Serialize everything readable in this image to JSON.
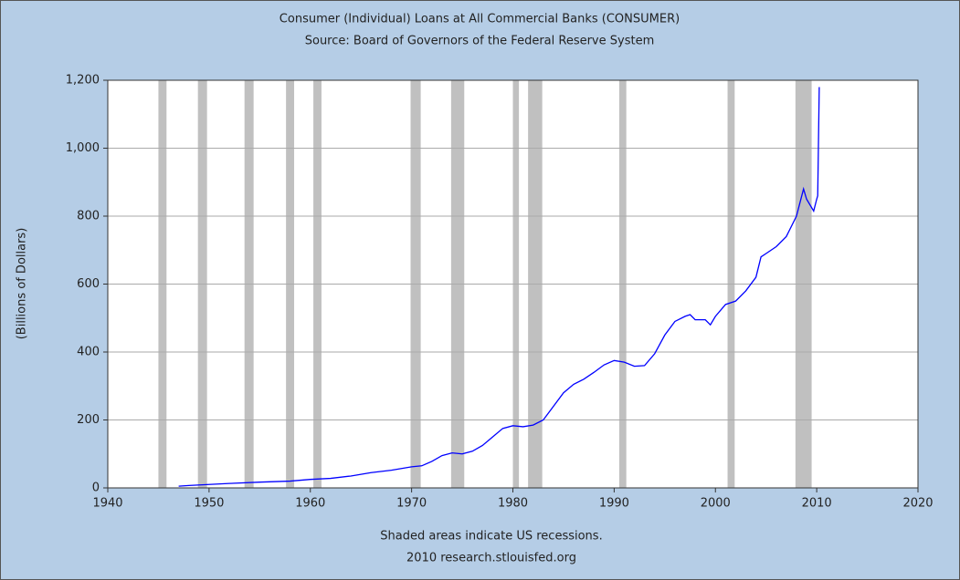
{
  "chart_data": {
    "type": "line",
    "title": "Consumer (Individual) Loans at All Commercial Banks (CONSUMER)",
    "subtitle": "Source: Board of Governors of the Federal Reserve System",
    "y_label": "(Billions of Dollars)",
    "footnote": "Shaded areas indicate US recessions.",
    "credit": "2010 research.stlouisfed.org",
    "color": "#0000ff",
    "recession_color": "#c0c0c0",
    "grid": true,
    "xlim": [
      1940,
      2020
    ],
    "xticks": [
      1940,
      1950,
      1960,
      1970,
      1980,
      1990,
      2000,
      2010,
      2020
    ],
    "ylim": [
      0,
      1200
    ],
    "yticks": [
      0,
      200,
      400,
      600,
      800,
      {
        "value": 1000,
        "label": "1,000"
      },
      {
        "value": 1200,
        "label": "1,200"
      }
    ],
    "recessions": [
      [
        1945.0,
        1945.8
      ],
      [
        1948.9,
        1949.8
      ],
      [
        1953.5,
        1954.4
      ],
      [
        1957.6,
        1958.4
      ],
      [
        1960.3,
        1961.1
      ],
      [
        1969.9,
        1970.9
      ],
      [
        1973.9,
        1975.2
      ],
      [
        1980.0,
        1980.6
      ],
      [
        1981.5,
        1982.9
      ],
      [
        1990.5,
        1991.2
      ],
      [
        2001.2,
        2001.9
      ],
      [
        2007.9,
        2009.5
      ]
    ],
    "x": [
      1947,
      1948,
      1950,
      1952,
      1955,
      1958,
      1960,
      1962,
      1964,
      1966,
      1968,
      1970,
      1971,
      1972,
      1973,
      1974,
      1975,
      1976,
      1977,
      1978,
      1979,
      1980,
      1981,
      1982,
      1983,
      1984,
      1985,
      1986,
      1987,
      1988,
      1989,
      1990,
      1991,
      1992,
      1993,
      1994,
      1995,
      1996,
      1997,
      1997.5,
      1998,
      1999,
      1999.5,
      2000,
      2001,
      2002,
      2003,
      2004,
      2004.5,
      2005,
      2006,
      2007,
      2008,
      2008.7,
      2009,
      2009.7,
      2010,
      2010.1,
      2010.25
    ],
    "values": [
      5,
      7,
      10,
      13,
      17,
      20,
      25,
      28,
      35,
      45,
      52,
      62,
      65,
      78,
      95,
      103,
      100,
      108,
      125,
      150,
      175,
      183,
      180,
      185,
      200,
      240,
      280,
      305,
      320,
      340,
      362,
      375,
      370,
      358,
      360,
      395,
      450,
      490,
      505,
      510,
      495,
      495,
      480,
      505,
      540,
      550,
      580,
      620,
      680,
      690,
      710,
      740,
      800,
      880,
      850,
      815,
      850,
      860,
      1180
    ]
  }
}
